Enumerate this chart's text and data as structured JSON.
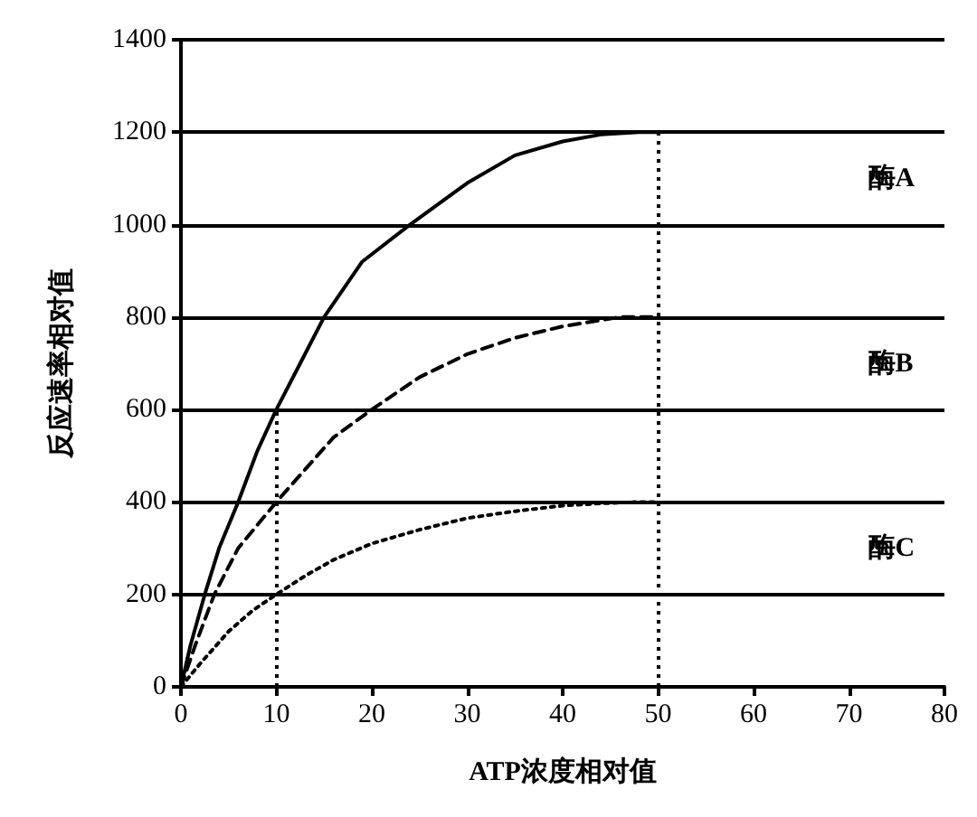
{
  "chart_data": {
    "type": "line",
    "xlabel": "ATP浓度相对值",
    "ylabel": "反应速率相对值",
    "xlim": [
      0,
      80
    ],
    "xticks": [
      0,
      10,
      20,
      30,
      40,
      50,
      60,
      70,
      80
    ],
    "ylim": [
      0,
      1400
    ],
    "yticks": [
      0,
      200,
      400,
      600,
      800,
      1000,
      1200,
      1400
    ],
    "grid": "y",
    "marker": "none",
    "series": [
      {
        "name": "酶A",
        "color": "#000000",
        "line_style": "solid",
        "x": [
          0,
          1,
          2.5,
          4,
          6,
          8,
          10,
          12.5,
          15,
          19,
          24,
          30,
          35,
          40,
          44,
          48,
          50
        ],
        "values": [
          0,
          90,
          200,
          300,
          400,
          510,
          600,
          700,
          800,
          920,
          1000,
          1090,
          1150,
          1180,
          1195,
          1200,
          1200
        ]
      },
      {
        "name": "酶B",
        "color": "#000000",
        "line_style": "dashed",
        "x": [
          0,
          1.5,
          3.5,
          6,
          10,
          13,
          16,
          20,
          25,
          30,
          35,
          40,
          46,
          50
        ],
        "values": [
          0,
          90,
          200,
          300,
          400,
          470,
          540,
          600,
          670,
          720,
          755,
          780,
          800,
          800
        ]
      },
      {
        "name": "酶C",
        "color": "#000000",
        "line_style": "dotted",
        "x": [
          0,
          2,
          5,
          7.5,
          10,
          13,
          16,
          20,
          25,
          30,
          35,
          40,
          44,
          48,
          50
        ],
        "values": [
          0,
          50,
          120,
          165,
          200,
          240,
          275,
          310,
          340,
          365,
          380,
          392,
          397,
          400,
          400
        ]
      }
    ],
    "ref_lines": [
      {
        "axis": "x",
        "value": 10,
        "line_style": "dotted",
        "color": "#000000"
      },
      {
        "axis": "x",
        "value": 50,
        "line_style": "dotted",
        "color": "#000000"
      }
    ]
  }
}
